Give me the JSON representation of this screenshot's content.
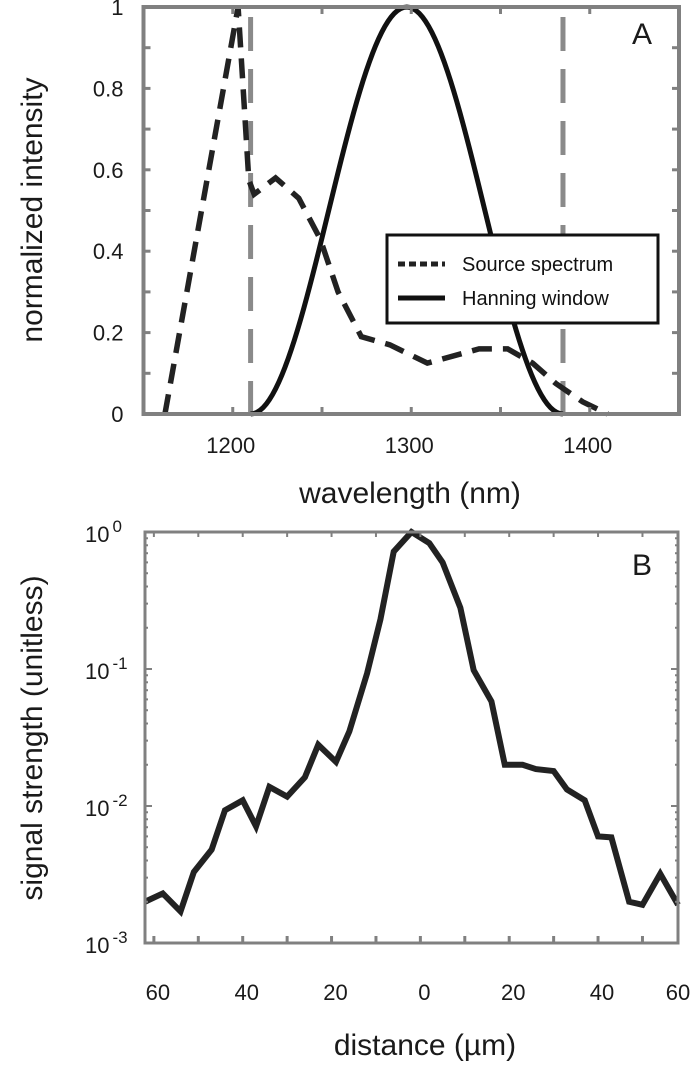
{
  "chart_data": [
    {
      "type": "line",
      "panel_label": "A",
      "xlabel": "wavelength (nm)",
      "ylabel": "normalized intensity",
      "xlim": [
        1150,
        1450
      ],
      "ylim": [
        0,
        1
      ],
      "xticks": [
        1200,
        1300,
        1400
      ],
      "xtick_labels": [
        "1200",
        "1300",
        "1400"
      ],
      "yticks": [
        0,
        0.2,
        0.4,
        0.6,
        0.8,
        1
      ],
      "ytick_labels": [
        "0",
        "0.2",
        "0.4",
        "0.6",
        "0.8",
        "1"
      ],
      "grid": false,
      "legend": "center-right",
      "window_edges_nm": [
        1210,
        1385
      ],
      "series": [
        {
          "name": "Source spectrum",
          "style": "dashed",
          "x": [
            1162,
            1203,
            1209,
            1212,
            1224,
            1237,
            1249,
            1259,
            1272,
            1288,
            1309,
            1338,
            1354,
            1368,
            1381,
            1396,
            1410
          ],
          "y": [
            0,
            1.0,
            0.575,
            0.54,
            0.58,
            0.53,
            0.43,
            0.3,
            0.19,
            0.17,
            0.125,
            0.16,
            0.16,
            0.125,
            0.075,
            0.03,
            0
          ]
        },
        {
          "name": "Hanning window",
          "style": "solid",
          "function": "hanning",
          "x_range": [
            1210,
            1385
          ]
        }
      ]
    },
    {
      "type": "line",
      "panel_label": "B",
      "xlabel": "distance (µm)",
      "ylabel": "signal strength (unitless)",
      "xlim": [
        -62,
        58
      ],
      "ylim": [
        0.001,
        1
      ],
      "yscale": "log",
      "xticks": [
        -60,
        -40,
        -20,
        0,
        20,
        40,
        60
      ],
      "xtick_labels": [
        "60",
        "40",
        "20",
        "0",
        "20",
        "40",
        "60"
      ],
      "yticks": [
        1,
        0.1,
        0.01,
        0.001
      ],
      "ytick_labels": [
        {
          "base": "10",
          "exp": "0"
        },
        {
          "base": "10",
          "exp": "-1"
        },
        {
          "base": "10",
          "exp": "-2"
        },
        {
          "base": "10",
          "exp": "-3"
        }
      ],
      "grid": false,
      "series": [
        {
          "x": [
            -62,
            -58,
            -54,
            -51,
            -47,
            -44,
            -40,
            -37,
            -34,
            -30,
            -26,
            -23,
            -19,
            -16,
            -12,
            -9,
            -6,
            -2,
            2,
            5,
            9,
            12,
            16,
            19,
            23,
            26,
            30,
            33,
            37,
            40,
            43,
            47,
            50,
            54,
            58
          ],
          "y": [
            0.002,
            0.0023,
            0.0017,
            0.0033,
            0.0048,
            0.0093,
            0.011,
            0.0071,
            0.0138,
            0.0117,
            0.0162,
            0.028,
            0.021,
            0.035,
            0.093,
            0.23,
            0.72,
            1.0,
            0.83,
            0.6,
            0.28,
            0.098,
            0.058,
            0.02,
            0.02,
            0.0186,
            0.018,
            0.0132,
            0.011,
            0.006,
            0.0059,
            0.002,
            0.0019,
            0.0032,
            0.0019
          ]
        }
      ]
    }
  ],
  "colors": {
    "line": "#222222",
    "axes": "#808080",
    "window_edges": "#8a8a8a"
  }
}
